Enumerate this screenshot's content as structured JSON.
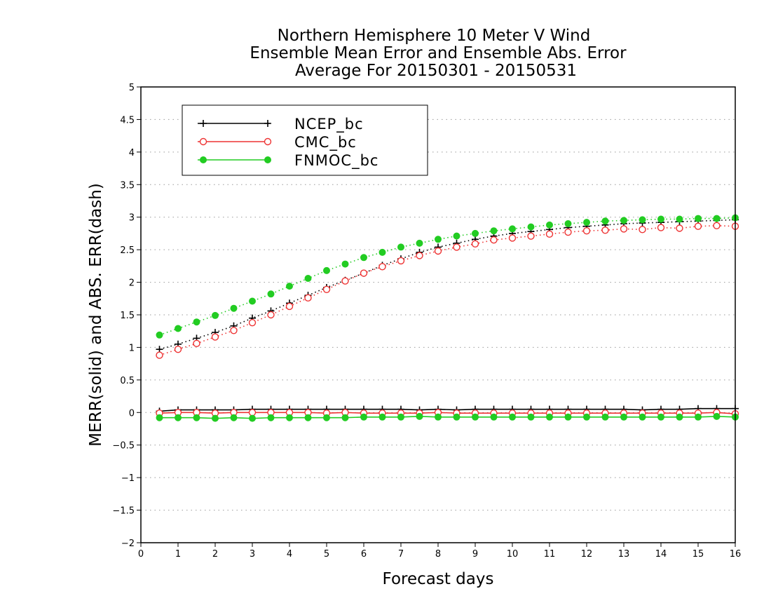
{
  "chart_data": {
    "type": "line",
    "title": [
      "Northern Hemisphere 10 Meter V Wind",
      "Ensemble Mean Error and Ensemble Abs. Error",
      "Average For 20150301 - 20150531"
    ],
    "xlabel": "Forecast days",
    "ylabel": "MERR(solid) and ABS. ERR(dash)",
    "xlim": [
      0,
      16
    ],
    "ylim": [
      -2,
      5
    ],
    "xticks": [
      "0",
      "1",
      "2",
      "3",
      "4",
      "5",
      "6",
      "7",
      "8",
      "9",
      "10",
      "11",
      "12",
      "13",
      "14",
      "15",
      "16"
    ],
    "yticks": [
      "−2",
      "−1.5",
      "−1",
      "−0.5",
      "0",
      "0.5",
      "1",
      "1.5",
      "2",
      "2.5",
      "3",
      "3.5",
      "4",
      "4.5",
      "5"
    ],
    "grid": "horizontal dotted",
    "legend_position": "top-left",
    "x": [
      0.5,
      1,
      1.5,
      2,
      2.5,
      3,
      3.5,
      4,
      4.5,
      5,
      5.5,
      6,
      6.5,
      7,
      7.5,
      8,
      8.5,
      9,
      9.5,
      10,
      10.5,
      11,
      11.5,
      12,
      12.5,
      13,
      13.5,
      14,
      14.5,
      15,
      15.5,
      16
    ],
    "series": [
      {
        "name": "NCEP_bc",
        "color": "#000000",
        "marker": "plus",
        "merr": [
          0.02,
          0.04,
          0.04,
          0.04,
          0.04,
          0.05,
          0.05,
          0.05,
          0.05,
          0.05,
          0.05,
          0.05,
          0.05,
          0.05,
          0.04,
          0.05,
          0.04,
          0.05,
          0.05,
          0.05,
          0.05,
          0.05,
          0.05,
          0.05,
          0.05,
          0.05,
          0.04,
          0.05,
          0.05,
          0.06,
          0.06,
          0.06
        ],
        "abs_err": [
          0.97,
          1.05,
          1.14,
          1.23,
          1.33,
          1.45,
          1.56,
          1.68,
          1.8,
          1.92,
          2.03,
          2.14,
          2.26,
          2.36,
          2.46,
          2.54,
          2.6,
          2.66,
          2.71,
          2.75,
          2.78,
          2.81,
          2.84,
          2.86,
          2.88,
          2.9,
          2.91,
          2.92,
          2.93,
          2.94,
          2.95,
          2.96
        ]
      },
      {
        "name": "CMC_bc",
        "color": "#ee3333",
        "marker": "open-circle",
        "merr": [
          -0.01,
          0.0,
          0.0,
          -0.01,
          0.0,
          0.0,
          0.0,
          0.0,
          0.0,
          -0.01,
          0.0,
          -0.01,
          -0.01,
          -0.01,
          -0.01,
          0.0,
          -0.01,
          -0.01,
          -0.01,
          -0.01,
          -0.01,
          -0.01,
          -0.01,
          -0.01,
          -0.01,
          -0.01,
          -0.01,
          -0.01,
          -0.01,
          -0.01,
          0.0,
          -0.02
        ],
        "abs_err": [
          0.88,
          0.97,
          1.06,
          1.16,
          1.26,
          1.38,
          1.5,
          1.63,
          1.76,
          1.89,
          2.02,
          2.14,
          2.24,
          2.33,
          2.41,
          2.48,
          2.54,
          2.59,
          2.65,
          2.68,
          2.71,
          2.74,
          2.77,
          2.79,
          2.8,
          2.82,
          2.81,
          2.84,
          2.83,
          2.86,
          2.87,
          2.86
        ]
      },
      {
        "name": "FNMOC_bc",
        "color": "#22cc22",
        "marker": "filled-circle",
        "merr": [
          -0.08,
          -0.08,
          -0.08,
          -0.09,
          -0.08,
          -0.09,
          -0.08,
          -0.08,
          -0.08,
          -0.08,
          -0.08,
          -0.07,
          -0.07,
          -0.07,
          -0.06,
          -0.07,
          -0.07,
          -0.07,
          -0.07,
          -0.07,
          -0.07,
          -0.07,
          -0.07,
          -0.07,
          -0.07,
          -0.07,
          -0.07,
          -0.07,
          -0.07,
          -0.07,
          -0.06,
          -0.07
        ],
        "abs_err": [
          1.19,
          1.29,
          1.39,
          1.49,
          1.6,
          1.71,
          1.82,
          1.94,
          2.06,
          2.18,
          2.28,
          2.38,
          2.46,
          2.54,
          2.6,
          2.66,
          2.71,
          2.75,
          2.79,
          2.82,
          2.85,
          2.88,
          2.9,
          2.92,
          2.94,
          2.95,
          2.96,
          2.97,
          2.97,
          2.98,
          2.98,
          2.99
        ]
      }
    ]
  }
}
